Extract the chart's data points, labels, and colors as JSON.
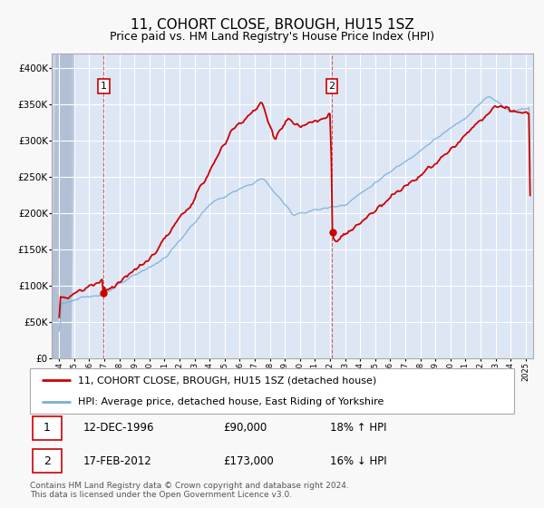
{
  "title": "11, COHORT CLOSE, BROUGH, HU15 1SZ",
  "subtitle": "Price paid vs. HM Land Registry's House Price Index (HPI)",
  "xlim": [
    1993.5,
    2025.5
  ],
  "ylim": [
    0,
    420000
  ],
  "yticks": [
    0,
    50000,
    100000,
    150000,
    200000,
    250000,
    300000,
    350000,
    400000
  ],
  "ytick_labels": [
    "£0",
    "£50K",
    "£100K",
    "£150K",
    "£200K",
    "£250K",
    "£300K",
    "£350K",
    "£400K"
  ],
  "background_color": "#f0f4ff",
  "plot_bg_color": "#dde6f5",
  "grid_color": "#ffffff",
  "hatch_color": "#c5cfe0",
  "sale1_date": 1996.95,
  "sale1_price": 90000,
  "sale1_label": "1",
  "sale1_text": "12-DEC-1996",
  "sale1_amount": "£90,000",
  "sale1_hpi": "18% ↑ HPI",
  "sale2_date": 2012.12,
  "sale2_price": 173000,
  "sale2_label": "2",
  "sale2_text": "17-FEB-2012",
  "sale2_amount": "£173,000",
  "sale2_hpi": "16% ↓ HPI",
  "red_line_color": "#cc0000",
  "blue_line_color": "#7bafd4",
  "legend_label_red": "11, COHORT CLOSE, BROUGH, HU15 1SZ (detached house)",
  "legend_label_blue": "HPI: Average price, detached house, East Riding of Yorkshire",
  "footer_text": "Contains HM Land Registry data © Crown copyright and database right 2024.\nThis data is licensed under the Open Government Licence v3.0.",
  "title_fontsize": 11,
  "subtitle_fontsize": 9,
  "axis_fontsize": 7.5,
  "legend_fontsize": 8,
  "footer_fontsize": 6.5
}
